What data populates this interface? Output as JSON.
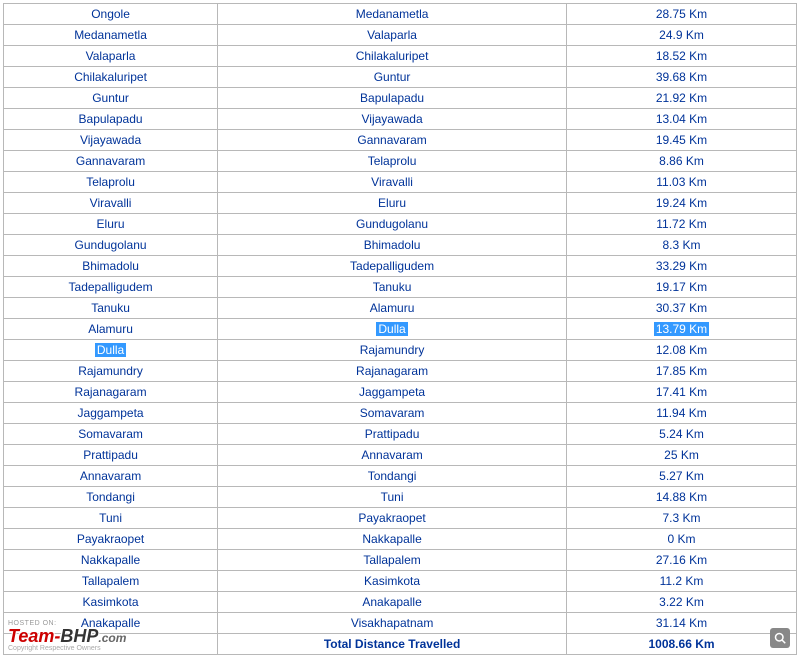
{
  "table": {
    "rows": [
      {
        "from": "Ongole",
        "to": "Medanametla",
        "dist": "28.75 Km",
        "hl": false
      },
      {
        "from": "Medanametla",
        "to": "Valaparla",
        "dist": "24.9 Km",
        "hl": false
      },
      {
        "from": "Valaparla",
        "to": "Chilakaluripet",
        "dist": "18.52 Km",
        "hl": false
      },
      {
        "from": "Chilakaluripet",
        "to": "Guntur",
        "dist": "39.68 Km",
        "hl": false
      },
      {
        "from": "Guntur",
        "to": "Bapulapadu",
        "dist": "21.92 Km",
        "hl": false
      },
      {
        "from": "Bapulapadu",
        "to": "Vijayawada",
        "dist": "13.04 Km",
        "hl": false
      },
      {
        "from": "Vijayawada",
        "to": "Gannavaram",
        "dist": "19.45 Km",
        "hl": false
      },
      {
        "from": "Gannavaram",
        "to": "Telaprolu",
        "dist": "8.86 Km",
        "hl": false
      },
      {
        "from": "Telaprolu",
        "to": "Viravalli",
        "dist": "11.03 Km",
        "hl": false
      },
      {
        "from": "Viravalli",
        "to": "Eluru",
        "dist": "19.24 Km",
        "hl": false
      },
      {
        "from": "Eluru",
        "to": "Gundugolanu",
        "dist": "11.72 Km",
        "hl": false
      },
      {
        "from": "Gundugolanu",
        "to": "Bhimadolu",
        "dist": "8.3 Km",
        "hl": false
      },
      {
        "from": "Bhimadolu",
        "to": "Tadepalligudem",
        "dist": "33.29 Km",
        "hl": false
      },
      {
        "from": "Tadepalligudem",
        "to": "Tanuku",
        "dist": "19.17 Km",
        "hl": false
      },
      {
        "from": "Tanuku",
        "to": "Alamuru",
        "dist": "30.37 Km",
        "hl": false
      },
      {
        "from": "Alamuru",
        "to": "Dulla",
        "dist": "13.79 Km",
        "hl": "to-dist"
      },
      {
        "from": "Dulla",
        "to": "Rajamundry",
        "dist": "12.08 Km",
        "hl": "from"
      },
      {
        "from": "Rajamundry",
        "to": "Rajanagaram",
        "dist": "17.85 Km",
        "hl": false
      },
      {
        "from": "Rajanagaram",
        "to": "Jaggampeta",
        "dist": "17.41 Km",
        "hl": false
      },
      {
        "from": "Jaggampeta",
        "to": "Somavaram",
        "dist": "11.94 Km",
        "hl": false
      },
      {
        "from": "Somavaram",
        "to": "Prattipadu",
        "dist": "5.24 Km",
        "hl": false
      },
      {
        "from": "Prattipadu",
        "to": "Annavaram",
        "dist": "25 Km",
        "hl": false
      },
      {
        "from": "Annavaram",
        "to": "Tondangi",
        "dist": "5.27 Km",
        "hl": false
      },
      {
        "from": "Tondangi",
        "to": "Tuni",
        "dist": "14.88 Km",
        "hl": false
      },
      {
        "from": "Tuni",
        "to": "Payakraopet",
        "dist": "7.3 Km",
        "hl": false
      },
      {
        "from": "Payakraopet",
        "to": "Nakkapalle",
        "dist": "0 Km",
        "hl": false
      },
      {
        "from": "Nakkapalle",
        "to": "Tallapalem",
        "dist": "27.16 Km",
        "hl": false
      },
      {
        "from": "Tallapalem",
        "to": "Kasimkota",
        "dist": "11.2 Km",
        "hl": false
      },
      {
        "from": "Kasimkota",
        "to": "Anakapalle",
        "dist": "3.22 Km",
        "hl": false
      },
      {
        "from": "Anakapalle",
        "to": "Visakhapatnam",
        "dist": "31.14 Km",
        "hl": false
      }
    ],
    "total": {
      "label": "Total Distance Travelled",
      "value": "1008.66 Km"
    }
  },
  "watermark": {
    "hosted": "HOSTED ON:",
    "logo_team": "Team-",
    "logo_bhp": "BHP",
    "logo_com": ".com",
    "copyright": "Copyright Respective Owners"
  }
}
